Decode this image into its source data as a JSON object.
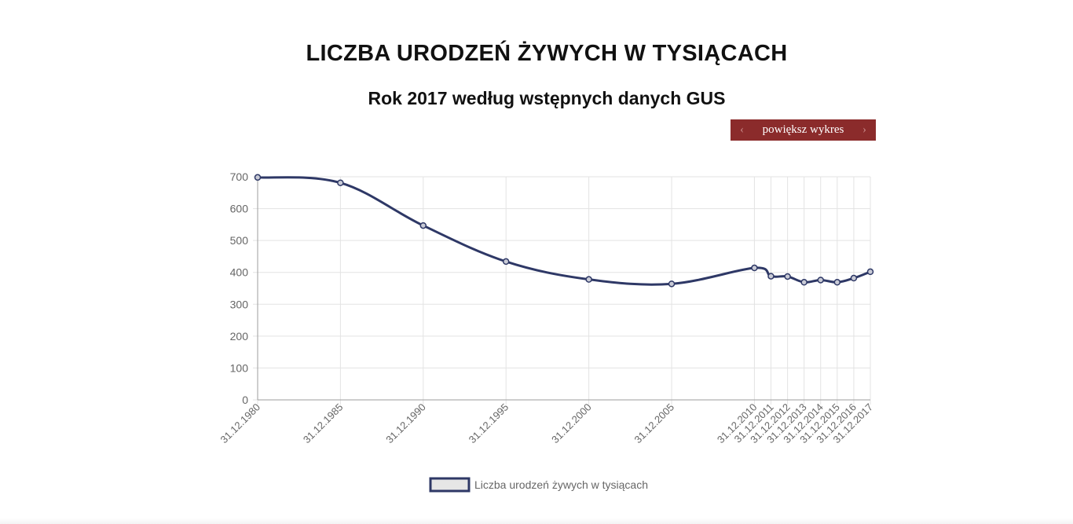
{
  "header": {
    "title": "LICZBA URODZEŃ ŻYWYCH W TYSIĄCACH",
    "subtitle": "Rok 2017 według wstępnych danych GUS",
    "zoom_button_label": "powiększ wykres"
  },
  "colors": {
    "series_line": "#2e3866",
    "grid": "#e3e3e3",
    "axis": "#9e9e9e",
    "tick_text": "#666666",
    "button_bg": "#8b2b2b",
    "legend_fill": "#e6e6e6"
  },
  "chart_data": {
    "type": "line",
    "title": "",
    "xlabel": "",
    "ylabel": "",
    "ylim": [
      0,
      700
    ],
    "y_ticks": [
      0,
      100,
      200,
      300,
      400,
      500,
      600,
      700
    ],
    "x_axis": "date",
    "grid": true,
    "legend_position": "bottom",
    "x": [
      "31.12.1980",
      "31.12.1985",
      "31.12.1990",
      "31.12.1995",
      "31.12.2000",
      "31.12.2005",
      "31.12.2010",
      "31.12.2011",
      "31.12.2012",
      "31.12.2013",
      "31.12.2014",
      "31.12.2015",
      "31.12.2016",
      "31.12.2017"
    ],
    "series": [
      {
        "name": "Liczba urodzeń żywych w tysiącach",
        "values": [
          698,
          681,
          547,
          434,
          378,
          364,
          414,
          388,
          387,
          369,
          376,
          369,
          382,
          402
        ]
      }
    ]
  }
}
